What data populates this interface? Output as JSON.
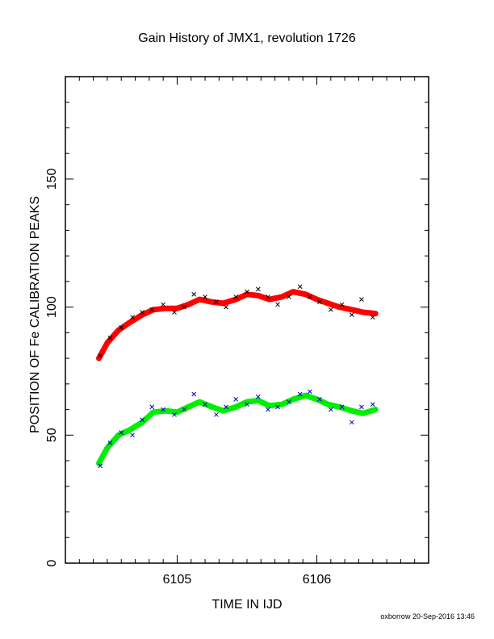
{
  "chart_data": {
    "type": "scatter",
    "title": "Gain History of JMX1, revolution 1726",
    "xlabel": "TIME IN IJD",
    "ylabel": "POSITION OF Fe CALIBRATION PEAKS",
    "xlim": [
      6104.2,
      6106.8
    ],
    "ylim": [
      0,
      190
    ],
    "x_ticks": [
      "6105",
      "6106"
    ],
    "y_ticks": [
      "0",
      "50",
      "100",
      "150"
    ],
    "grid": false,
    "footer": "oxborrow 20-Sep-2016 13:46",
    "series": [
      {
        "color": "#ff0000",
        "style": "thick-line",
        "x": [
          6104.44,
          6104.5,
          6104.58,
          6104.66,
          6104.75,
          6104.83,
          6104.92,
          6105.0,
          6105.08,
          6105.16,
          6105.25,
          6105.33,
          6105.42,
          6105.5,
          6105.58,
          6105.66,
          6105.75,
          6105.83,
          6105.92,
          6106.0,
          6106.08,
          6106.16,
          6106.25,
          6106.33,
          6106.42
        ],
        "y": [
          80,
          86,
          91,
          94,
          97,
          99,
          99.5,
          99.5,
          101,
          103,
          102,
          101.5,
          103,
          105,
          104.5,
          103,
          104,
          106,
          105,
          103,
          101.5,
          100,
          99,
          98,
          97.5
        ]
      },
      {
        "color": "#000000",
        "style": "x-markers",
        "x": [
          6104.45,
          6104.52,
          6104.6,
          6104.68,
          6104.75,
          6104.82,
          6104.9,
          6104.98,
          6105.05,
          6105.12,
          6105.2,
          6105.28,
          6105.35,
          6105.42,
          6105.5,
          6105.58,
          6105.65,
          6105.72,
          6105.8,
          6105.88,
          6105.95,
          6106.02,
          6106.1,
          6106.18,
          6106.25,
          6106.32,
          6106.4
        ],
        "y": [
          81,
          88,
          92,
          96,
          98,
          99,
          101,
          98,
          100,
          105,
          104,
          102,
          100,
          104,
          106,
          107,
          104,
          101,
          104,
          108,
          104,
          102,
          99,
          101,
          97,
          103,
          96
        ]
      },
      {
        "color": "#00ee00",
        "style": "thick-line",
        "x": [
          6104.44,
          6104.5,
          6104.58,
          6104.66,
          6104.75,
          6104.83,
          6104.92,
          6105.0,
          6105.08,
          6105.16,
          6105.25,
          6105.33,
          6105.42,
          6105.5,
          6105.58,
          6105.66,
          6105.75,
          6105.83,
          6105.92,
          6106.0,
          6106.08,
          6106.16,
          6106.25,
          6106.33,
          6106.42
        ],
        "y": [
          39,
          45,
          50,
          52,
          55,
          59,
          59.5,
          59,
          61,
          63,
          61,
          59.5,
          61,
          63,
          63.5,
          61.5,
          62,
          64,
          65.5,
          64,
          62,
          61,
          59.5,
          58.5,
          60
        ]
      },
      {
        "color": "#0000cc",
        "style": "x-markers",
        "x": [
          6104.45,
          6104.52,
          6104.6,
          6104.68,
          6104.75,
          6104.82,
          6104.9,
          6104.98,
          6105.05,
          6105.12,
          6105.2,
          6105.28,
          6105.35,
          6105.42,
          6105.5,
          6105.58,
          6105.65,
          6105.72,
          6105.8,
          6105.88,
          6105.95,
          6106.02,
          6106.1,
          6106.18,
          6106.25,
          6106.32,
          6106.4
        ],
        "y": [
          38,
          47,
          51,
          50,
          56,
          61,
          60,
          58,
          60,
          66,
          62,
          58,
          61,
          64,
          62,
          65,
          60,
          61,
          63,
          66,
          67,
          64,
          60,
          61,
          55,
          61,
          62
        ]
      }
    ]
  }
}
